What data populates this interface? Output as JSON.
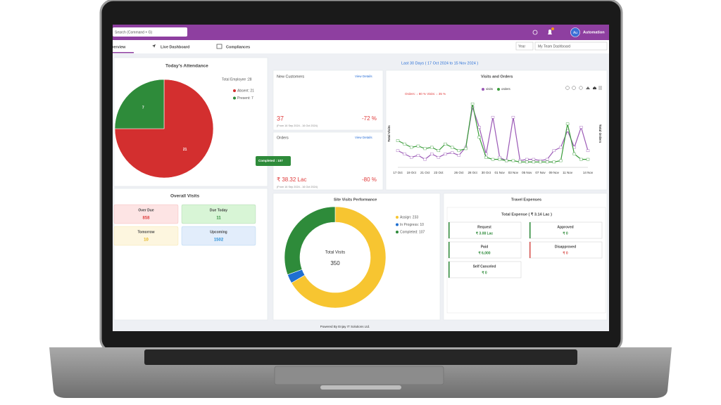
{
  "topbar": {
    "search_placeholder": "Search (Command + G)",
    "user_initials": "Au",
    "user_name": "Automation"
  },
  "tabs": [
    "Overview",
    "Live Dashboard",
    "Compliances"
  ],
  "filters": {
    "period": "Year",
    "dashboard": "My Team Dashboard"
  },
  "date_range": "Last 30 Days ( 17 Oct 2024 to 15 Nov 2024 )",
  "attendance": {
    "title": "Today's Attendance",
    "total_label": "Total Employee :28",
    "slices": [
      {
        "label": "Absent: 21",
        "value": 21,
        "color": "#d32f2f"
      },
      {
        "label": "Present: 7",
        "value": 7,
        "color": "#2e8b3a"
      }
    ]
  },
  "overall_visits": {
    "title": "Overall Visits",
    "cards": [
      {
        "label": "Over Due",
        "value": "858",
        "color": "#e04646",
        "bg": "#fde4e4"
      },
      {
        "label": "Due Today",
        "value": "11",
        "color": "#2e8b3a",
        "bg": "#d8f5d6"
      },
      {
        "label": "Tomorrow",
        "value": "10",
        "color": "#e3b21a",
        "bg": "#fdf6df"
      },
      {
        "label": "Upcoming",
        "value": "1502",
        "color": "#2a8fd6",
        "bg": "#e2edfb"
      }
    ]
  },
  "new_customers": {
    "title": "New Customers",
    "link": "View Details",
    "value": "37",
    "change": "-72 %",
    "note": "(From 16 Sep 2024 - 16 Oct 2024)"
  },
  "orders": {
    "title": "Orders",
    "link": "View Details",
    "value": "₹ 38.32 Lac",
    "change": "-80 %",
    "note": "(From 16 Sep 2024 - 16 Oct 2024)"
  },
  "completed_tag": "Completed : 107",
  "visits_orders": {
    "title": "Visits and Orders",
    "annotation": "Orders: ↓ 80 % Visits: ↓ 35 %",
    "y_label": "Total Visits",
    "y2_label": "Total Orders",
    "categories": [
      "17 Oct",
      null,
      "19 Oct",
      null,
      "21 Oct",
      null,
      "23 Oct",
      null,
      null,
      "26 Oct",
      null,
      "28 Oct",
      null,
      "30 Oct",
      null,
      "01 Nov",
      null,
      "03 Nov",
      null,
      "05 Nov",
      null,
      "07 Nov",
      null,
      "09 Nov",
      null,
      "11 Nov",
      null,
      null,
      "14 Nov"
    ],
    "ylim": [
      0,
      100
    ],
    "y2lim": [
      0,
      100
    ],
    "series": [
      {
        "name": "visits",
        "color": "#9b59b6",
        "values": [
          25,
          20,
          15,
          18,
          12,
          20,
          15,
          20,
          22,
          18,
          30,
          90,
          60,
          20,
          75,
          15,
          10,
          75,
          10,
          12,
          12,
          10,
          12,
          25,
          30,
          55,
          30,
          60,
          25
        ]
      },
      {
        "name": "orders",
        "color": "#3a9d3a",
        "axis": "y2",
        "values": [
          40,
          35,
          30,
          32,
          28,
          30,
          25,
          35,
          30,
          25,
          28,
          95,
          45,
          15,
          12,
          12,
          10,
          10,
          8,
          8,
          8,
          8,
          8,
          8,
          10,
          65,
          20,
          12,
          12
        ]
      }
    ]
  },
  "site_visits": {
    "title": "Site Visits Performance",
    "center_label": "Total Visits",
    "total": 350,
    "slices": [
      {
        "label": "Assign: 233",
        "value": 233,
        "color": "#f7c531"
      },
      {
        "label": "In Progress: 10",
        "value": 10,
        "color": "#1f6fd1"
      },
      {
        "label": "Completed: 107",
        "value": 107,
        "color": "#2e8b3a"
      }
    ]
  },
  "travel": {
    "title": "Travel Expenses",
    "total": "Total Expense ( ₹ 3.14 Lac )",
    "cards": [
      {
        "label": "Request",
        "value": "₹ 3.08 Lac"
      },
      {
        "label": "Approved",
        "value": "₹ 0"
      },
      {
        "label": "Paid",
        "value": "₹ 6,000"
      },
      {
        "label": "Disapproved",
        "value": "₹ 0"
      },
      {
        "label": "Self Canceled",
        "value": "₹ 0"
      }
    ]
  },
  "footer": "Powered By Enjay IT Solutions Ltd."
}
